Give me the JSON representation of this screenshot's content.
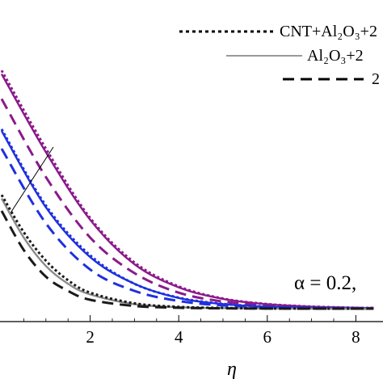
{
  "chart_data": {
    "type": "line",
    "xlabel": "η",
    "ylabel": "",
    "xlim": [
      0,
      8.4
    ],
    "x_ticks": [
      "2",
      "4",
      "6",
      "8"
    ],
    "legend_placement": "top-right",
    "legend": [
      {
        "label": "CNT+Al₂O₃+2",
        "style": "dotted"
      },
      {
        "label": "Al₂O₃+2",
        "style": "solid"
      },
      {
        "label": "2",
        "style": "dashed"
      }
    ],
    "annotation": "α = 0.2,",
    "colors": {
      "purple": "#8b1a8b",
      "blue": "#1f2fe0",
      "black": "#1a1a1a",
      "grey": "#8a8a8a"
    },
    "series": [
      {
        "group": "purple",
        "style": "solid",
        "color": "#8b1a8b",
        "values": [
          [
            0,
            1.32
          ],
          [
            1,
            0.88
          ],
          [
            2,
            0.5
          ],
          [
            3,
            0.25
          ],
          [
            4,
            0.12
          ],
          [
            5,
            0.055
          ],
          [
            6,
            0.025
          ],
          [
            7,
            0.011
          ],
          [
            8,
            0.005
          ],
          [
            8.4,
            0.004
          ]
        ]
      },
      {
        "group": "purple",
        "style": "dotted",
        "color": "#8b1a8b",
        "values": [
          [
            0,
            1.34
          ],
          [
            1,
            0.9
          ],
          [
            2,
            0.51
          ],
          [
            3,
            0.26
          ],
          [
            4,
            0.125
          ],
          [
            5,
            0.057
          ],
          [
            6,
            0.026
          ],
          [
            7,
            0.012
          ],
          [
            8,
            0.005
          ],
          [
            8.4,
            0.004
          ]
        ]
      },
      {
        "group": "purple",
        "style": "dashed",
        "color": "#8b1a8b",
        "values": [
          [
            0,
            1.18
          ],
          [
            1,
            0.74
          ],
          [
            2,
            0.4
          ],
          [
            3,
            0.2
          ],
          [
            4,
            0.09
          ],
          [
            5,
            0.04
          ],
          [
            6,
            0.018
          ],
          [
            7,
            0.008
          ],
          [
            8,
            0.004
          ],
          [
            8.4,
            0.003
          ]
        ]
      },
      {
        "group": "blue",
        "style": "solid",
        "color": "#1f2fe0",
        "values": [
          [
            0,
            1.0
          ],
          [
            1,
            0.57
          ],
          [
            2,
            0.29
          ],
          [
            3,
            0.14
          ],
          [
            4,
            0.06
          ],
          [
            5,
            0.026
          ],
          [
            6,
            0.011
          ],
          [
            7,
            0.005
          ],
          [
            8,
            0.002
          ],
          [
            8.4,
            0.002
          ]
        ]
      },
      {
        "group": "blue",
        "style": "dotted",
        "color": "#1f2fe0",
        "values": [
          [
            0,
            1.01
          ],
          [
            1,
            0.58
          ],
          [
            2,
            0.3
          ],
          [
            3,
            0.14
          ],
          [
            4,
            0.062
          ],
          [
            5,
            0.027
          ],
          [
            6,
            0.012
          ],
          [
            7,
            0.005
          ],
          [
            8,
            0.002
          ],
          [
            8.4,
            0.002
          ]
        ]
      },
      {
        "group": "blue",
        "style": "dashed",
        "color": "#1f2fe0",
        "values": [
          [
            0,
            0.9
          ],
          [
            1,
            0.48
          ],
          [
            2,
            0.22
          ],
          [
            3,
            0.1
          ],
          [
            4,
            0.043
          ],
          [
            5,
            0.018
          ],
          [
            6,
            0.008
          ],
          [
            7,
            0.003
          ],
          [
            8,
            0.001
          ],
          [
            8.4,
            0.001
          ]
        ]
      },
      {
        "group": "black",
        "style": "solid",
        "color": "#8a8a8a",
        "values": [
          [
            0,
            0.62
          ],
          [
            0.5,
            0.4
          ],
          [
            1,
            0.24
          ],
          [
            1.5,
            0.14
          ],
          [
            2,
            0.08
          ],
          [
            3,
            0.025
          ],
          [
            4,
            0.008
          ],
          [
            5,
            0.003
          ],
          [
            6,
            0.001
          ],
          [
            8.4,
            0.0
          ]
        ]
      },
      {
        "group": "black",
        "style": "dotted",
        "color": "#1a1a1a",
        "values": [
          [
            0,
            0.64
          ],
          [
            0.5,
            0.43
          ],
          [
            1,
            0.27
          ],
          [
            1.5,
            0.16
          ],
          [
            2,
            0.09
          ],
          [
            3,
            0.03
          ],
          [
            4,
            0.01
          ],
          [
            5,
            0.004
          ],
          [
            6,
            0.001
          ],
          [
            8.4,
            0.0
          ]
        ]
      },
      {
        "group": "black",
        "style": "dashed",
        "color": "#1a1a1a",
        "values": [
          [
            0,
            0.55
          ],
          [
            0.5,
            0.33
          ],
          [
            1,
            0.18
          ],
          [
            1.5,
            0.1
          ],
          [
            2,
            0.05
          ],
          [
            3,
            0.015
          ],
          [
            4,
            0.005
          ],
          [
            5,
            0.002
          ],
          [
            6,
            0.0005
          ],
          [
            8.4,
            0.0
          ]
        ]
      }
    ]
  }
}
